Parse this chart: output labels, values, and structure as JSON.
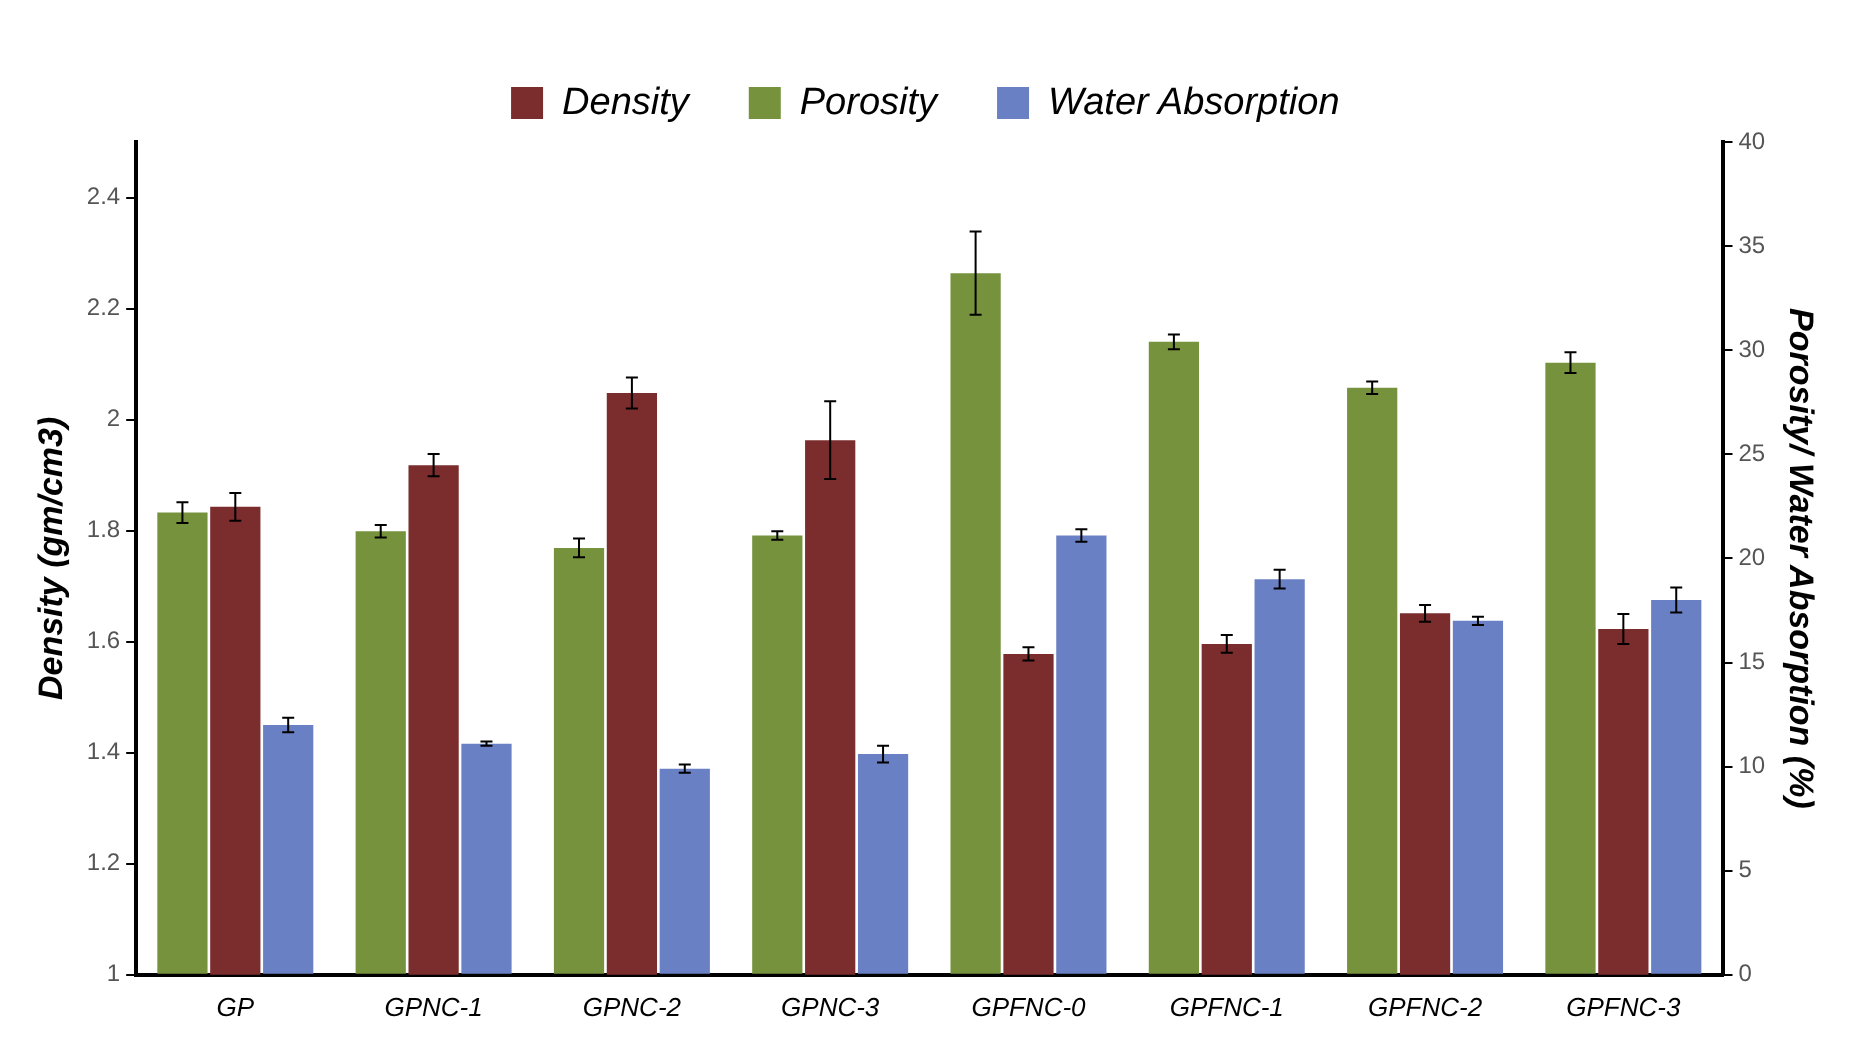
{
  "chart_data": {
    "type": "bar",
    "ylabel": "Density (gm/cm3)",
    "y2label": "Porosity/ Water Absorption (%)",
    "categories": [
      "GP",
      "GPNC-1",
      "GPNC-2",
      "GPNC-3",
      "GPFNC-0",
      "GPFNC-1",
      "GPFNC-2",
      "GPFNC-3"
    ],
    "series": [
      {
        "name": "Density",
        "color": "#7b2c2c",
        "values": [
          1.843,
          1.918,
          2.048,
          1.963,
          1.578,
          1.596,
          1.651,
          1.623
        ],
        "errors": [
          0.025,
          0.02,
          0.028,
          0.07,
          0.012,
          0.016,
          0.015,
          0.027
        ]
      },
      {
        "name": "Porosity",
        "color": "#76923c",
        "axis": "y2",
        "values": [
          22.2,
          21.3,
          20.5,
          21.1,
          33.7,
          30.4,
          28.2,
          29.4
        ],
        "errors": [
          0.5,
          0.3,
          0.45,
          0.2,
          2.0,
          0.35,
          0.3,
          0.5
        ]
      },
      {
        "name": "Water Absorption",
        "color": "#6a80c4",
        "axis": "y2",
        "values": [
          12.0,
          11.1,
          9.9,
          10.6,
          21.1,
          19.0,
          17.0,
          18.0
        ],
        "errors": [
          0.35,
          0.1,
          0.2,
          0.4,
          0.3,
          0.45,
          0.2,
          0.6
        ]
      }
    ],
    "ylim": [
      1,
      2.5
    ],
    "yticks": [
      1,
      1.2,
      1.4,
      1.6,
      1.8,
      2,
      2.2,
      2.4
    ],
    "y2lim": [
      0,
      40
    ],
    "y2ticks": [
      0,
      5,
      10,
      15,
      20,
      25,
      30,
      35,
      40
    ],
    "grid": false,
    "legend": "top"
  }
}
